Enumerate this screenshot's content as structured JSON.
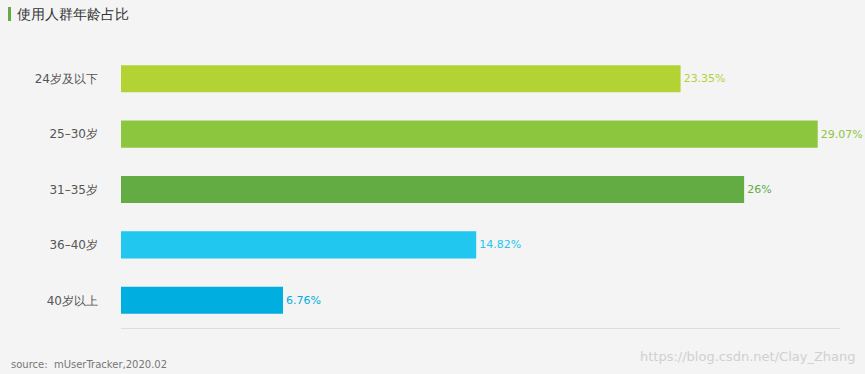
{
  "chart_data": {
    "type": "bar",
    "title": "使用人群年龄占比",
    "categories": [
      "24岁及以下",
      "25–30岁",
      "31–35岁",
      "36–40岁",
      "40岁以上"
    ],
    "values": [
      23.35,
      29.07,
      26,
      14.82,
      6.76
    ],
    "value_labels": [
      "23.35%",
      "29.07%",
      "26%",
      "14.82%",
      "6.76%"
    ],
    "colors": [
      "#b3d334",
      "#8cc63f",
      "#62ac43",
      "#22c7f0",
      "#00aee0"
    ],
    "orientation": "horizontal",
    "data_labels": true,
    "tick_labels": "y",
    "grid": false,
    "xlim": [
      0,
      30
    ],
    "xticks": [],
    "annotations": [
      "source:  mUserTracker,2020.02",
      "https://blog.csdn.net/Clay_Zhang"
    ]
  }
}
